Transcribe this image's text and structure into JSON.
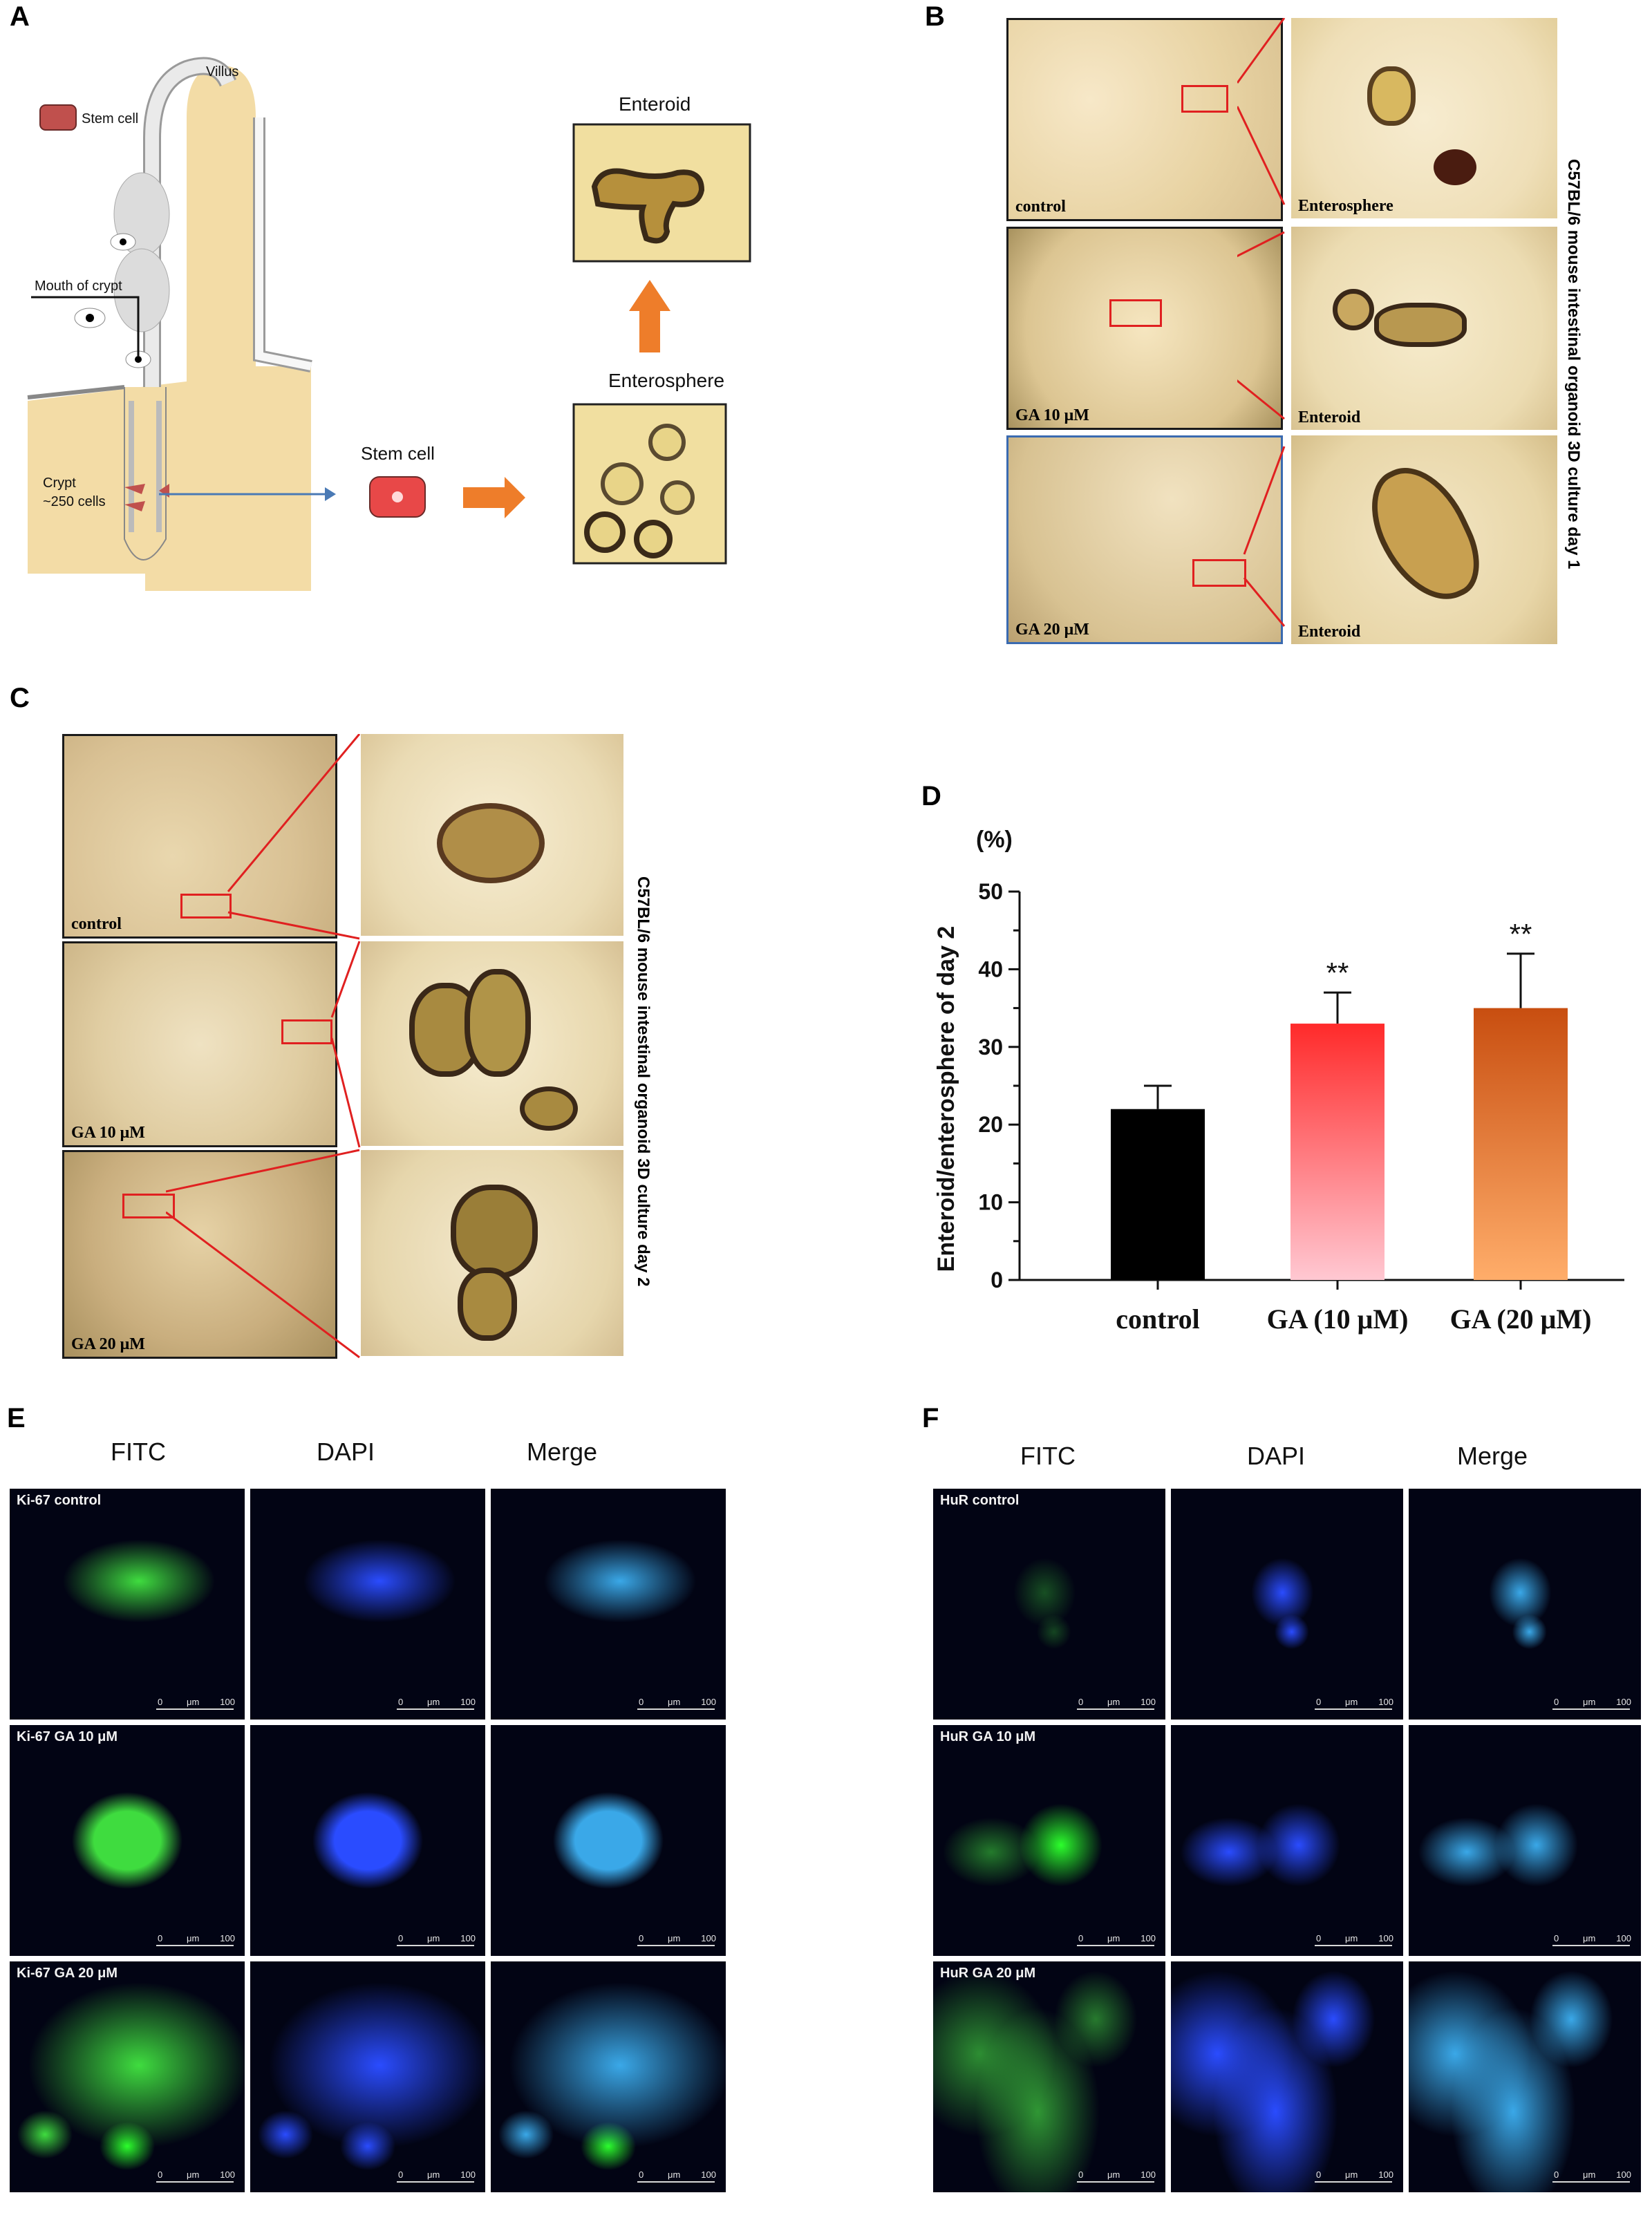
{
  "panels": {
    "a": "A",
    "b": "B",
    "c": "C",
    "d": "D",
    "e": "E",
    "f": "F"
  },
  "diagram_a": {
    "villus": "Villus",
    "stem_cell_legend": "Stem cell",
    "mouth_of_crypt": "Mouth of crypt",
    "crypt": "Crypt",
    "crypt_cells": "~250 cells",
    "stem_cell": "Stem cell",
    "enteroid": "Enteroid",
    "enterosphere": "Enterosphere"
  },
  "panel_b": {
    "side_label": "C57BL/6 mouse intestinal organoid 3D culture day 1",
    "rows": [
      {
        "label": "control",
        "zoom_label": "Enterosphere"
      },
      {
        "label": "GA 10 μM",
        "zoom_label": "Enteroid"
      },
      {
        "label": "GA 20 μM",
        "zoom_label": "Enteroid"
      }
    ]
  },
  "panel_c": {
    "side_label": "C57BL/6 mouse intestinal organoid 3D culture day 2",
    "rows": [
      {
        "label": "control"
      },
      {
        "label": "GA 10 μM"
      },
      {
        "label": "GA 20 μM"
      }
    ]
  },
  "chart_data": {
    "type": "bar",
    "categories": [
      "control",
      "GA (10 μM)",
      "GA (20 μM)"
    ],
    "values": [
      22,
      33,
      35
    ],
    "errors": [
      3,
      4,
      7
    ],
    "significance": [
      "",
      "**",
      "**"
    ],
    "ylabel": "Enteroid/enterosphere of day 2",
    "yunit": "(%)",
    "ylim": [
      0,
      50
    ],
    "yticks": [
      "0",
      "10",
      "20",
      "30",
      "40",
      "50"
    ],
    "grid": false,
    "colors": [
      "#000000",
      "#ff2a2a",
      "#cc5a1a"
    ]
  },
  "panel_e": {
    "headers": [
      "FITC",
      "DAPI",
      "Merge"
    ],
    "rows": [
      "Ki-67 control",
      "Ki-67  GA 10 μM",
      "Ki-67  GA 20 μM"
    ],
    "scale_left": "0",
    "scale_unit": "μm",
    "scale_right": "100"
  },
  "panel_f": {
    "headers": [
      "FITC",
      "DAPI",
      "Merge"
    ],
    "rows": [
      "HuR  control",
      "HuR  GA  10 μM",
      "HuR  GA 20 μM"
    ],
    "scale_left": "0",
    "scale_unit": "μm",
    "scale_right": "100"
  },
  "colors": {
    "tissue": "#f3dca6",
    "fitc": "#3fdc3f",
    "dapi": "#2a4cff",
    "merge": "#3aa8e8"
  }
}
